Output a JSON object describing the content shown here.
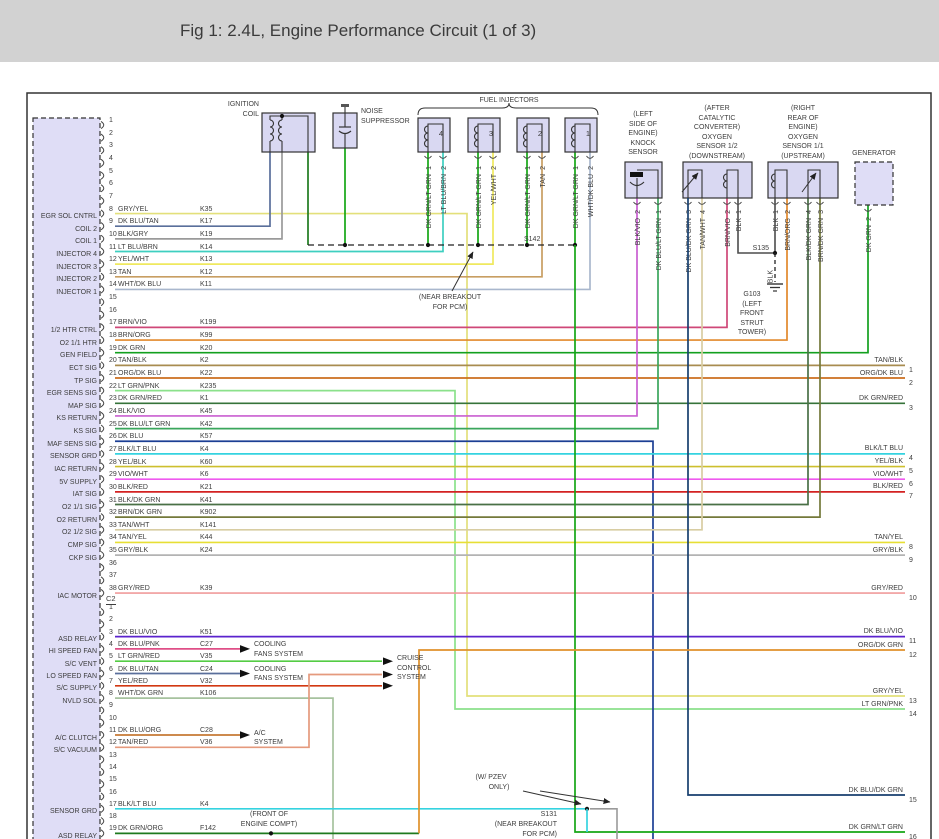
{
  "title": "Fig 1: 2.4L, Engine Performance Circuit (1 of 3)",
  "colors": {
    "GRY/YEL": "#e3e07a",
    "DK BLU/TAN": "#5a6f9b",
    "BLK/GRY": "#9a9a9a",
    "LT BLU/BRN": "#3ecfc0",
    "YEL/WHT": "#efe95e",
    "TAN": "#c89e62",
    "WHT/DK BLU": "#a9b7cd",
    "BRN/VIO": "#cf4878",
    "BRN/ORG": "#e2892c",
    "DK GRN": "#13a01f",
    "TAN/BLK": "#a88c50",
    "ORG/DK BLU": "#cc6e1e",
    "LT GRN/PNK": "#8be18b",
    "DK GRN/RED": "#36733a",
    "BLK/VIO": "#c95fd1",
    "DK BLU/LT GRN": "#3aa65c",
    "DK BLU": "#1c3f94",
    "BLK/LT BLU": "#35d3e0",
    "YEL/BLK": "#cdbf2e",
    "VIO/WHT": "#ef59ef",
    "BLK/RED": "#d32222",
    "BLK/DK GRN": "#4a7046",
    "BRN/DK GRN": "#74793a",
    "TAN/WHT": "#d8cda2",
    "TAN/YEL": "#e7df35",
    "GRY/BLK": "#b3b3b3",
    "GRY/RED": "#f19b9b",
    "DK BLU/VIO": "#5b23cd",
    "DK BLU/PNK": "#df4f87",
    "LT GRN/RED": "#54cc44",
    "YEL/RED": "#d23812",
    "WHT/DK GRN": "#a6c29e",
    "DK BLU/ORG": "#c67a35",
    "TAN/RED": "#e59a7d",
    "DK GRN/ORG": "#1e7a1e",
    "ORG/DK GRN": "#e0912b",
    "DK GRN/LT GRN": "#15a615",
    "DK BLU/DK GRN": "#173f6e",
    "BLK": "#4c4c4c"
  },
  "pcm": {
    "c2_label": "C2",
    "c1_rows": [
      {
        "pin": "1"
      },
      {
        "pin": "2"
      },
      {
        "pin": "3"
      },
      {
        "pin": "4"
      },
      {
        "pin": "5"
      },
      {
        "pin": "6"
      },
      {
        "pin": "7"
      },
      {
        "pin": "8",
        "label": "EGR SOL CNTRL",
        "wire": "GRY/YEL",
        "code": "K35"
      },
      {
        "pin": "9",
        "label": "COIL 2",
        "wire": "DK BLU/TAN",
        "code": "K17"
      },
      {
        "pin": "10",
        "label": "COIL 1",
        "wire": "BLK/GRY",
        "code": "K19"
      },
      {
        "pin": "11",
        "label": "INJECTOR 4",
        "wire": "LT BLU/BRN",
        "code": "K14"
      },
      {
        "pin": "12",
        "label": "INJECTOR 3",
        "wire": "YEL/WHT",
        "code": "K13"
      },
      {
        "pin": "13",
        "label": "INJECTOR 2",
        "wire": "TAN",
        "code": "K12"
      },
      {
        "pin": "14",
        "label": "INJECTOR 1",
        "wire": "WHT/DK BLU",
        "code": "K11"
      },
      {
        "pin": "15"
      },
      {
        "pin": "16"
      },
      {
        "pin": "17",
        "label": "1/2 HTR CTRL",
        "wire": "BRN/VIO",
        "code": "K199"
      },
      {
        "pin": "18",
        "label": "O2 1/1 HTR",
        "wire": "BRN/ORG",
        "code": "K99"
      },
      {
        "pin": "19",
        "label": "GEN FIELD",
        "wire": "DK GRN",
        "code": "K20"
      },
      {
        "pin": "20",
        "label": "ECT SIG",
        "wire": "TAN/BLK",
        "code": "K2"
      },
      {
        "pin": "21",
        "label": "TP SIG",
        "wire": "ORG/DK BLU",
        "code": "K22"
      },
      {
        "pin": "22",
        "label": "EGR SENS SIG",
        "wire": "LT GRN/PNK",
        "code": "K235"
      },
      {
        "pin": "23",
        "label": "MAP SIG",
        "wire": "DK GRN/RED",
        "code": "K1"
      },
      {
        "pin": "24",
        "label": "KS RETURN",
        "wire": "BLK/VIO",
        "code": "K45"
      },
      {
        "pin": "25",
        "label": "KS SIG",
        "wire": "DK BLU/LT GRN",
        "code": "K42"
      },
      {
        "pin": "26",
        "label": "MAF SENS SIG",
        "wire": "DK BLU",
        "code": "K57"
      },
      {
        "pin": "27",
        "label": "SENSOR GRD",
        "wire": "BLK/LT BLU",
        "code": "K4"
      },
      {
        "pin": "28",
        "label": "IAC RETURN",
        "wire": "YEL/BLK",
        "code": "K60"
      },
      {
        "pin": "29",
        "label": "5V SUPPLY",
        "wire": "VIO/WHT",
        "code": "K6"
      },
      {
        "pin": "30",
        "label": "IAT SIG",
        "wire": "BLK/RED",
        "code": "K21"
      },
      {
        "pin": "31",
        "label": "O2 1/1 SIG",
        "wire": "BLK/DK GRN",
        "code": "K41"
      },
      {
        "pin": "32",
        "label": "O2 RETURN",
        "wire": "BRN/DK GRN",
        "code": "K902"
      },
      {
        "pin": "33",
        "label": "O2 1/2 SIG",
        "wire": "TAN/WHT",
        "code": "K141"
      },
      {
        "pin": "34",
        "label": "CMP SIG",
        "wire": "TAN/YEL",
        "code": "K44"
      },
      {
        "pin": "35",
        "label": "CKP SIG",
        "wire": "GRY/BLK",
        "code": "K24"
      },
      {
        "pin": "36"
      },
      {
        "pin": "37"
      },
      {
        "pin": "38",
        "label": "IAC MOTOR",
        "wire": "GRY/RED",
        "code": "K39"
      }
    ],
    "c2_rows": [
      {
        "pin": "1"
      },
      {
        "pin": "2"
      },
      {
        "pin": "3",
        "label": "ASD RELAY",
        "wire": "DK BLU/VIO",
        "code": "K51"
      },
      {
        "pin": "4",
        "label": "HI SPEED FAN",
        "wire": "DK BLU/PNK",
        "code": "C27"
      },
      {
        "pin": "5",
        "label": "S/C VENT",
        "wire": "LT GRN/RED",
        "code": "V35"
      },
      {
        "pin": "6",
        "label": "LO SPEED FAN",
        "wire": "DK BLU/TAN",
        "code": "C24"
      },
      {
        "pin": "7",
        "label": "S/C SUPPLY",
        "wire": "YEL/RED",
        "code": "V32"
      },
      {
        "pin": "8",
        "label": "NVLD SOL",
        "wire": "WHT/DK GRN",
        "code": "K106"
      },
      {
        "pin": "9"
      },
      {
        "pin": "10"
      },
      {
        "pin": "11",
        "label": "A/C CLUTCH",
        "wire": "DK BLU/ORG",
        "code": "C28"
      },
      {
        "pin": "12",
        "label": "S/C VACUUM",
        "wire": "TAN/RED",
        "code": "V36"
      },
      {
        "pin": "13"
      },
      {
        "pin": "14"
      },
      {
        "pin": "15"
      },
      {
        "pin": "16"
      },
      {
        "pin": "17",
        "label": "SENSOR GRD",
        "wire": "BLK/LT BLU",
        "code": "K4"
      },
      {
        "pin": "18"
      },
      {
        "pin": "19",
        "label": "ASD RELAY",
        "wire": "DK GRN/ORG",
        "code": "F142"
      }
    ]
  },
  "components": {
    "ignition_coil": {
      "caption": [
        "IGNITION",
        "COIL"
      ],
      "pins": [
        {
          "num": "1",
          "wire": "DK BLU/TAN"
        },
        {
          "num": "3",
          "wire": "BLK/GRY"
        },
        {
          "num": "2",
          "wire": "DK GRN/ORG"
        }
      ]
    },
    "noise_suppressor": {
      "caption": [
        "NOISE",
        "SUPPRESSOR"
      ],
      "pins": [
        {
          "num": "",
          "wire": "DK GRN/LT GRN"
        }
      ]
    },
    "fuel_injectors": {
      "caption": [
        "FUEL INJECTORS"
      ],
      "units": [
        {
          "label": "4",
          "pins": [
            {
              "num": "1",
              "wire": "DK GRN/LT GRN"
            },
            {
              "num": "2",
              "wire": "LT BLU/BRN"
            }
          ]
        },
        {
          "label": "3",
          "pins": [
            {
              "num": "1",
              "wire": "DK GRN/LT GRN"
            },
            {
              "num": "2",
              "wire": "YEL/WHT"
            }
          ]
        },
        {
          "label": "2",
          "pins": [
            {
              "num": "1",
              "wire": "DK GRN/LT GRN"
            },
            {
              "num": "2",
              "wire": "TAN"
            }
          ]
        },
        {
          "label": "1",
          "pins": [
            {
              "num": "1",
              "wire": "DK GRN/LT GRN"
            },
            {
              "num": "2",
              "wire": "WHT/DK BLU"
            }
          ]
        }
      ]
    },
    "knock_sensor": {
      "caption": [
        "(LEFT",
        "SIDE OF",
        "ENGINE)",
        "KNOCK",
        "SENSOR"
      ],
      "pins": [
        {
          "num": "2",
          "wire": "BLK/VIO"
        },
        {
          "num": "1",
          "wire": "DK BLU/LT GRN"
        }
      ]
    },
    "o2_downstream": {
      "caption": [
        "(AFTER",
        "CATALYTIC",
        "CONVERTER)",
        "OXYGEN",
        "SENSOR 1/2",
        "(DOWNSTREAM)"
      ],
      "pins": [
        {
          "num": "3",
          "wire": "DK BLU/DK GRN"
        },
        {
          "num": "4",
          "wire": "TAN/WHT"
        },
        {
          "num": "2",
          "wire": "BRN/VIO"
        },
        {
          "num": "1",
          "wire": "BLK"
        }
      ]
    },
    "o2_upstream": {
      "caption": [
        "(RIGHT",
        "REAR OF",
        "ENGINE)",
        "OXYGEN",
        "SENSOR 1/1",
        "(UPSTREAM)"
      ],
      "pins": [
        {
          "num": "1",
          "wire": "BLK"
        },
        {
          "num": "2",
          "wire": "BRN/ORG"
        },
        {
          "num": "4",
          "wire": "BLK/DK GRN"
        },
        {
          "num": "3",
          "wire": "BRN/DK GRN"
        }
      ]
    },
    "generator": {
      "caption": [
        "GENERATOR"
      ],
      "pins": [
        {
          "num": "2",
          "wire": "DK GRN"
        }
      ]
    }
  },
  "right_edge": [
    {
      "num": "1",
      "label": "TAN/BLK"
    },
    {
      "num": "2",
      "label": "ORG/DK BLU"
    },
    {
      "num": "3",
      "label": "DK GRN/RED"
    },
    {
      "num": "4",
      "label": "BLK/LT BLU"
    },
    {
      "num": "5",
      "label": "YEL/BLK"
    },
    {
      "num": "6",
      "label": "VIO/WHT"
    },
    {
      "num": "7",
      "label": "BLK/RED"
    },
    {
      "num": "8",
      "label": "TAN/YEL"
    },
    {
      "num": "9",
      "label": "GRY/BLK"
    },
    {
      "num": "10",
      "label": "GRY/RED"
    },
    {
      "num": "11",
      "label": "DK BLU/VIO"
    },
    {
      "num": "12",
      "label": "ORG/DK GRN"
    },
    {
      "num": "13",
      "label": "GRY/YEL"
    },
    {
      "num": "14",
      "label": "LT GRN/PNK"
    },
    {
      "num": "15",
      "label": "DK BLU/DK GRN"
    },
    {
      "num": "16",
      "label": "DK GRN/LT GRN"
    }
  ],
  "targets": {
    "cooling": [
      "COOLING",
      "FANS SYSTEM"
    ],
    "cruise": [
      "CRUISE",
      "CONTROL",
      "SYSTEM"
    ],
    "ac": [
      "A/C",
      "SYSTEM"
    ]
  },
  "annotations": {
    "s142": "S142",
    "near_breakout_pcm": [
      "(NEAR BREAKOUT",
      "FOR PCM)"
    ],
    "s135": "S135",
    "blk": "BLK",
    "g103": [
      "G103",
      "(LEFT",
      "FRONT",
      "STRUT",
      "TOWER)"
    ],
    "pzev": [
      "(W/ PZEV",
      "ONLY)"
    ],
    "s131": [
      "S131",
      "(NEAR BREAKOUT",
      "FOR PCM)"
    ],
    "front_engine": [
      "(FRONT OF",
      "ENGINE COMPT)"
    ]
  }
}
